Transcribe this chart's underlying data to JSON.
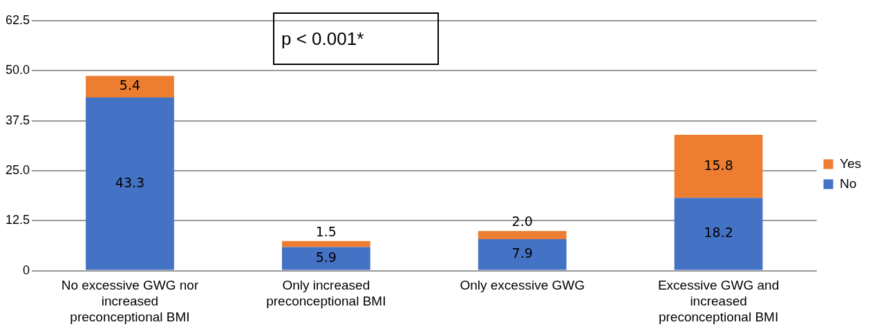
{
  "chart_data": {
    "type": "bar",
    "stacked": true,
    "categories": [
      "No excessive GWG nor increased preconceptional BMI",
      "Only increased preconceptional BMI",
      "Only excessive GWG",
      "Excessive GWG and increased preconceptional BMI"
    ],
    "series": [
      {
        "name": "No",
        "color": "#4472c4",
        "values": [
          43.3,
          5.9,
          7.9,
          18.2
        ],
        "value_labels": [
          "43.3",
          "5.9",
          "7.9",
          "18.2"
        ]
      },
      {
        "name": "Yes",
        "color": "#ed7d31",
        "values": [
          5.4,
          1.5,
          2.0,
          15.8
        ],
        "value_labels": [
          "5.4",
          "1.5",
          "2.0",
          "15.8"
        ]
      }
    ],
    "ylim": [
      0,
      62.5
    ],
    "yticks": [
      0,
      12.5,
      {
        "value": 25,
        "label": "25.0"
      },
      37.5,
      {
        "value": 50,
        "label": "50.0"
      },
      62.5
    ],
    "grid": "y",
    "legend": "right",
    "annotations": [
      "p < 0.001*"
    ]
  }
}
